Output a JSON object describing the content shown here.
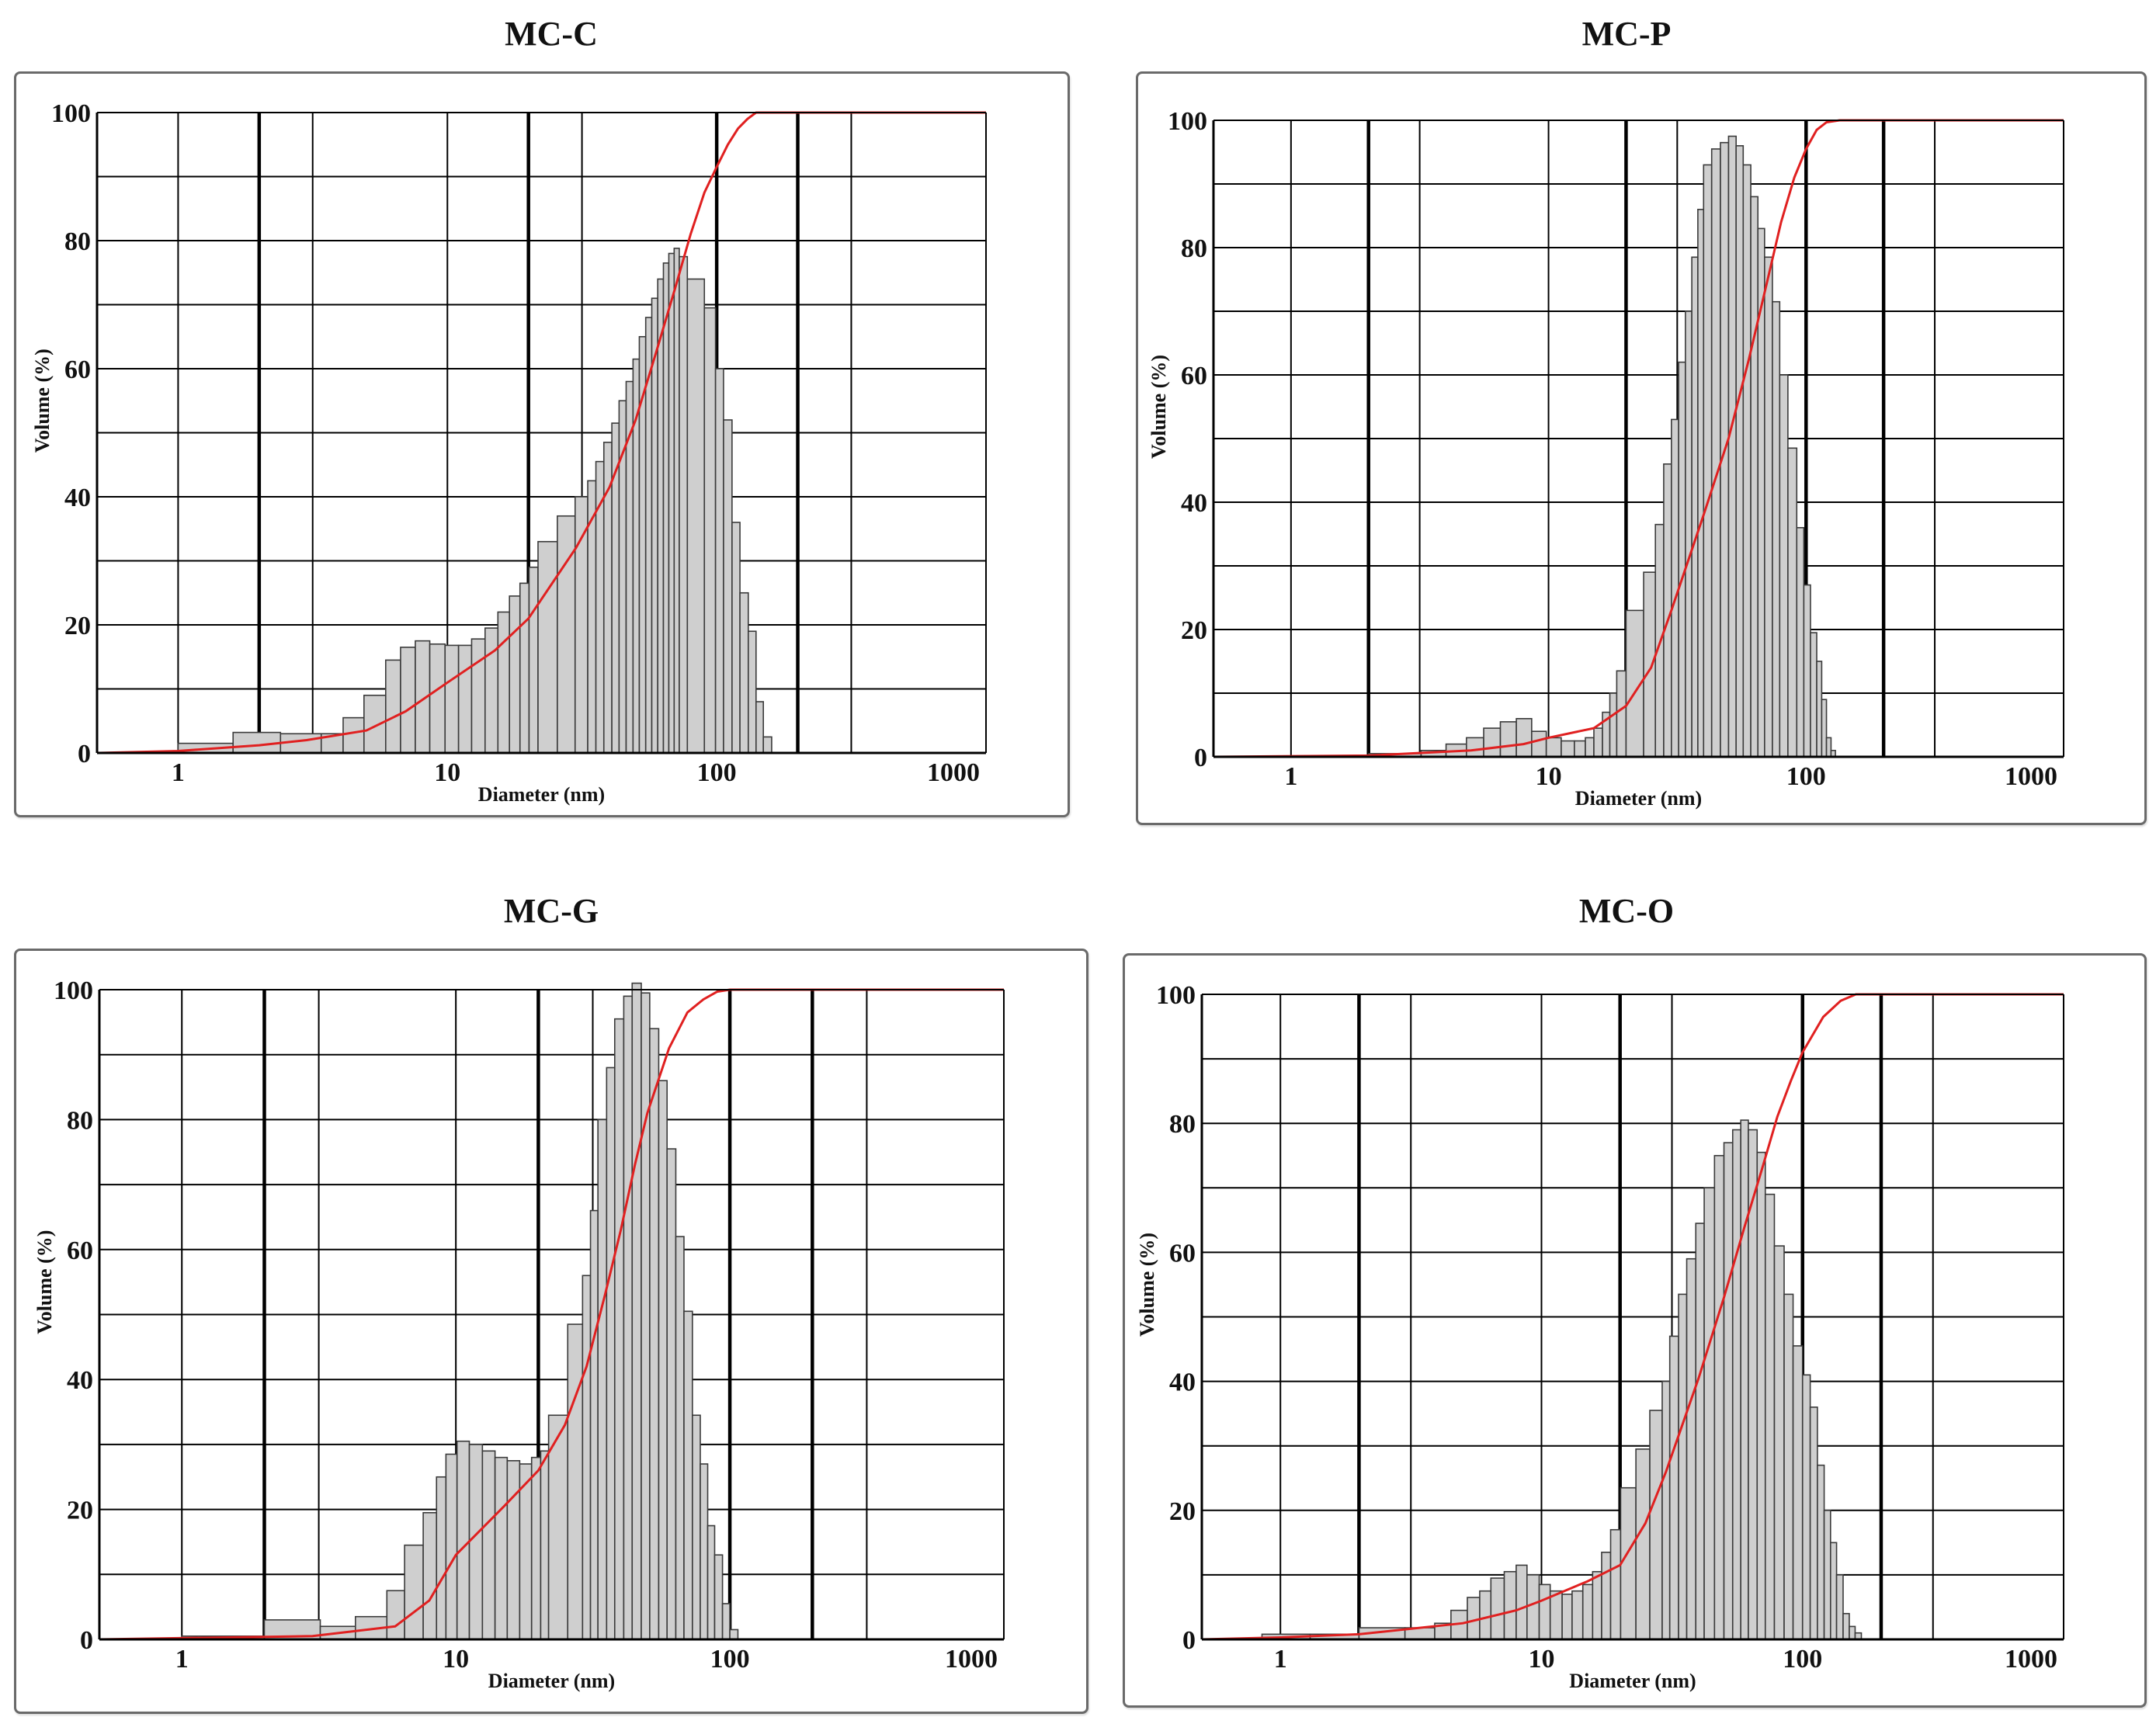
{
  "chart_data": [
    {
      "type": "bar",
      "title": "MC-C",
      "xlabel": "Diameter (nm)",
      "ylabel": "Volume (%)",
      "xscale": "log",
      "xlim": [
        0.5,
        1000
      ],
      "ylim": [
        0,
        100
      ],
      "xticks": [
        "1",
        "10",
        "100",
        "1000"
      ],
      "yticks": [
        "0",
        "20",
        "40",
        "60",
        "80",
        "100"
      ],
      "bins": [
        [
          0.7,
          1.0,
          0.2
        ],
        [
          1.0,
          1.6,
          1.5
        ],
        [
          1.6,
          2.4,
          3.2
        ],
        [
          2.4,
          3.4,
          3.0
        ],
        [
          3.4,
          4.1,
          3.0
        ],
        [
          4.1,
          4.9,
          5.5
        ],
        [
          4.9,
          5.9,
          9.0
        ],
        [
          5.9,
          6.7,
          14.5
        ],
        [
          6.7,
          7.6,
          16.5
        ],
        [
          7.6,
          8.6,
          17.5
        ],
        [
          8.6,
          9.8,
          17.0
        ],
        [
          9.8,
          11.0,
          16.8
        ],
        [
          11.0,
          12.3,
          16.8
        ],
        [
          12.3,
          13.8,
          17.8
        ],
        [
          13.8,
          15.4,
          19.5
        ],
        [
          15.4,
          17.0,
          22.0
        ],
        [
          17.0,
          18.6,
          24.5
        ],
        [
          18.6,
          20.1,
          26.5
        ],
        [
          20.1,
          21.7,
          29.0
        ],
        [
          21.7,
          25.6,
          33.0
        ],
        [
          25.6,
          29.8,
          37.0
        ],
        [
          29.8,
          33.2,
          40.0
        ],
        [
          33.2,
          35.6,
          42.5
        ],
        [
          35.6,
          38.1,
          45.5
        ],
        [
          38.1,
          40.8,
          48.5
        ],
        [
          40.8,
          43.4,
          51.5
        ],
        [
          43.4,
          46.1,
          55.0
        ],
        [
          46.1,
          48.9,
          58.0
        ],
        [
          48.9,
          51.6,
          61.5
        ],
        [
          51.6,
          54.5,
          65.0
        ],
        [
          54.5,
          57.4,
          68.0
        ],
        [
          57.4,
          60.4,
          71.0
        ],
        [
          60.4,
          63.4,
          74.0
        ],
        [
          63.4,
          66.4,
          76.5
        ],
        [
          66.4,
          69.5,
          78.0
        ],
        [
          69.5,
          72.6,
          78.8
        ],
        [
          72.6,
          77.8,
          77.5
        ],
        [
          77.8,
          90.0,
          74.0
        ],
        [
          90.0,
          99.0,
          69.5
        ],
        [
          99.0,
          106.0,
          60.0
        ],
        [
          106.0,
          114.0,
          52.0
        ],
        [
          114.0,
          122.0,
          36.0
        ],
        [
          122.0,
          131.0,
          25.0
        ],
        [
          131.0,
          140.0,
          19.0
        ],
        [
          140.0,
          149.0,
          8.0
        ],
        [
          149.0,
          160.0,
          2.5
        ]
      ],
      "cumulative": [
        [
          0.5,
          0
        ],
        [
          1.0,
          0.3
        ],
        [
          2.0,
          1.2
        ],
        [
          3.0,
          2.0
        ],
        [
          5.0,
          3.5
        ],
        [
          7.0,
          6.5
        ],
        [
          10.0,
          11.0
        ],
        [
          15.0,
          16.0
        ],
        [
          20.0,
          21.0
        ],
        [
          30.0,
          32.0
        ],
        [
          40.0,
          41.5
        ],
        [
          50.0,
          52.0
        ],
        [
          60.0,
          63.0
        ],
        [
          70.0,
          72.5
        ],
        [
          80.0,
          81.0
        ],
        [
          90.0,
          87.5
        ],
        [
          100.0,
          91.5
        ],
        [
          110.0,
          95.0
        ],
        [
          120.0,
          97.5
        ],
        [
          130.0,
          99.0
        ],
        [
          140.0,
          100
        ],
        [
          1000,
          100
        ]
      ]
    },
    {
      "type": "bar",
      "title": "MC-P",
      "xlabel": "Diameter (nm)",
      "ylabel": "Volume (%)",
      "xscale": "log",
      "xlim": [
        0.5,
        1000
      ],
      "ylim": [
        0,
        100
      ],
      "xticks": [
        "1",
        "10",
        "100",
        "1000"
      ],
      "yticks": [
        "0",
        "20",
        "40",
        "60",
        "80",
        "100"
      ],
      "bins": [
        [
          2.0,
          3.2,
          0.5
        ],
        [
          3.2,
          4.0,
          1.0
        ],
        [
          4.0,
          4.8,
          2.0
        ],
        [
          4.8,
          5.6,
          3.0
        ],
        [
          5.6,
          6.5,
          4.5
        ],
        [
          6.5,
          7.5,
          5.5
        ],
        [
          7.5,
          8.6,
          6.0
        ],
        [
          8.6,
          9.8,
          4.0
        ],
        [
          9.8,
          11.2,
          3.0
        ],
        [
          11.2,
          12.6,
          2.5
        ],
        [
          12.6,
          13.9,
          2.5
        ],
        [
          13.9,
          15.0,
          3.0
        ],
        [
          15.0,
          16.2,
          4.5
        ],
        [
          16.2,
          17.3,
          7.0
        ],
        [
          17.3,
          18.4,
          10.0
        ],
        [
          18.4,
          20.0,
          13.5
        ],
        [
          20.0,
          23.4,
          23.0
        ],
        [
          23.4,
          26.0,
          29.0
        ],
        [
          26.0,
          28.0,
          36.5
        ],
        [
          28.0,
          30.0,
          46.0
        ],
        [
          30.0,
          32.0,
          53.0
        ],
        [
          32.0,
          34.0,
          62.0
        ],
        [
          34.0,
          36.0,
          70.0
        ],
        [
          36.0,
          38.0,
          78.5
        ],
        [
          38.0,
          40.0,
          86.0
        ],
        [
          40.0,
          43.0,
          93.0
        ],
        [
          43.0,
          46.5,
          95.5
        ],
        [
          46.5,
          50.0,
          96.5
        ],
        [
          50.0,
          53.5,
          97.5
        ],
        [
          53.5,
          57.0,
          96.0
        ],
        [
          57.0,
          61.0,
          93.0
        ],
        [
          61.0,
          65.0,
          88.0
        ],
        [
          65.0,
          69.0,
          83.0
        ],
        [
          69.0,
          74.0,
          78.5
        ],
        [
          74.0,
          79.0,
          71.5
        ],
        [
          79.0,
          85.0,
          60.0
        ],
        [
          85.0,
          92.0,
          48.5
        ],
        [
          92.0,
          98.0,
          36.0
        ],
        [
          98.0,
          104.0,
          27.0
        ],
        [
          104.0,
          110.0,
          19.5
        ],
        [
          110.0,
          115.0,
          15.0
        ],
        [
          115.0,
          120.0,
          9.0
        ],
        [
          120.0,
          125.0,
          3.0
        ],
        [
          125.0,
          130.0,
          1.0
        ]
      ],
      "cumulative": [
        [
          0.5,
          0
        ],
        [
          2.0,
          0.2
        ],
        [
          5.0,
          1.0
        ],
        [
          8.0,
          2.0
        ],
        [
          10.0,
          3.0
        ],
        [
          15.0,
          4.5
        ],
        [
          20.0,
          8.0
        ],
        [
          25.0,
          14.0
        ],
        [
          30.0,
          23.0
        ],
        [
          40.0,
          38.0
        ],
        [
          50.0,
          50.0
        ],
        [
          60.0,
          62.5
        ],
        [
          70.0,
          74.0
        ],
        [
          80.0,
          84.0
        ],
        [
          90.0,
          91.0
        ],
        [
          100.0,
          95.5
        ],
        [
          110.0,
          98.5
        ],
        [
          120.0,
          99.7
        ],
        [
          135.0,
          100
        ],
        [
          1000,
          100
        ]
      ]
    },
    {
      "type": "bar",
      "title": "MC-G",
      "xlabel": "Diameter (nm)",
      "ylabel": "Volume (%)",
      "xscale": "log",
      "xlim": [
        0.5,
        1000
      ],
      "ylim": [
        0,
        100
      ],
      "xticks": [
        "1",
        "10",
        "100",
        "1000"
      ],
      "yticks": [
        "0",
        "20",
        "40",
        "60",
        "80",
        "100"
      ],
      "bins": [
        [
          1.0,
          2.0,
          0.5
        ],
        [
          2.0,
          3.2,
          3.0
        ],
        [
          3.2,
          4.3,
          2.0
        ],
        [
          4.3,
          5.6,
          3.5
        ],
        [
          5.6,
          6.5,
          7.5
        ],
        [
          6.5,
          7.6,
          14.5
        ],
        [
          7.6,
          8.5,
          19.5
        ],
        [
          8.5,
          9.2,
          25.0
        ],
        [
          9.2,
          10.1,
          28.5
        ],
        [
          10.1,
          11.2,
          30.5
        ],
        [
          11.2,
          12.5,
          30.0
        ],
        [
          12.5,
          13.9,
          29.0
        ],
        [
          13.9,
          15.4,
          28.0
        ],
        [
          15.4,
          17.1,
          27.5
        ],
        [
          17.1,
          18.9,
          27.0
        ],
        [
          18.9,
          20.4,
          28.0
        ],
        [
          20.4,
          21.8,
          29.0
        ],
        [
          21.8,
          25.6,
          34.5
        ],
        [
          25.6,
          29.0,
          48.5
        ],
        [
          29.0,
          31.0,
          56.0
        ],
        [
          31.0,
          33.0,
          66.0
        ],
        [
          33.0,
          35.5,
          80.0
        ],
        [
          35.5,
          38.0,
          88.0
        ],
        [
          38.0,
          41.0,
          95.5
        ],
        [
          41.0,
          44.0,
          99.0
        ],
        [
          44.0,
          47.5,
          101.0
        ],
        [
          47.5,
          51.0,
          99.5
        ],
        [
          51.0,
          55.0,
          94.0
        ],
        [
          55.0,
          59.0,
          86.0
        ],
        [
          59.0,
          63.5,
          75.5
        ],
        [
          63.5,
          68.0,
          62.0
        ],
        [
          68.0,
          73.0,
          50.5
        ],
        [
          73.0,
          78.0,
          34.5
        ],
        [
          78.0,
          83.0,
          27.0
        ],
        [
          83.0,
          88.0,
          17.5
        ],
        [
          88.0,
          94.0,
          13.0
        ],
        [
          94.0,
          100.0,
          5.5
        ],
        [
          100.0,
          107.0,
          1.5
        ]
      ],
      "cumulative": [
        [
          0.5,
          0
        ],
        [
          3.0,
          0.5
        ],
        [
          6.0,
          2.0
        ],
        [
          8.0,
          6.0
        ],
        [
          10.0,
          13.0
        ],
        [
          15.0,
          20.5
        ],
        [
          20.0,
          26.0
        ],
        [
          25.0,
          33.0
        ],
        [
          30.0,
          42.0
        ],
        [
          35.0,
          53.0
        ],
        [
          40.0,
          63.0
        ],
        [
          45.0,
          73.0
        ],
        [
          50.0,
          81.0
        ],
        [
          60.0,
          91.0
        ],
        [
          70.0,
          96.5
        ],
        [
          80.0,
          98.5
        ],
        [
          90.0,
          99.7
        ],
        [
          100.0,
          100
        ],
        [
          1000,
          100
        ]
      ]
    },
    {
      "type": "bar",
      "title": "MC-O",
      "xlabel": "Diameter (nm)",
      "ylabel": "Volume (%)",
      "xscale": "log",
      "xlim": [
        0.5,
        1000
      ],
      "ylim": [
        0,
        100
      ],
      "xticks": [
        "1",
        "10",
        "100",
        "1000"
      ],
      "yticks": [
        "0",
        "20",
        "40",
        "60",
        "80",
        "100"
      ],
      "bins": [
        [
          0.7,
          0.85,
          0.2
        ],
        [
          0.85,
          1.3,
          0.8
        ],
        [
          1.3,
          2.0,
          0.8
        ],
        [
          2.0,
          3.0,
          1.8
        ],
        [
          3.0,
          3.9,
          1.8
        ],
        [
          3.9,
          4.5,
          2.5
        ],
        [
          4.5,
          5.2,
          4.5
        ],
        [
          5.2,
          5.8,
          6.5
        ],
        [
          5.8,
          6.4,
          7.5
        ],
        [
          6.4,
          7.2,
          9.5
        ],
        [
          7.2,
          8.0,
          10.5
        ],
        [
          8.0,
          8.8,
          11.5
        ],
        [
          8.8,
          9.8,
          10.0
        ],
        [
          9.8,
          10.8,
          8.5
        ],
        [
          10.8,
          12.0,
          7.5
        ],
        [
          12.0,
          13.1,
          7.0
        ],
        [
          13.1,
          14.4,
          7.5
        ],
        [
          14.4,
          15.7,
          8.5
        ],
        [
          15.7,
          17.0,
          10.5
        ],
        [
          17.0,
          18.4,
          13.5
        ],
        [
          18.4,
          20.1,
          17.0
        ],
        [
          20.1,
          23.0,
          23.5
        ],
        [
          23.0,
          26.0,
          29.5
        ],
        [
          26.0,
          29.0,
          35.5
        ],
        [
          29.0,
          31.0,
          40.0
        ],
        [
          31.0,
          33.5,
          47.0
        ],
        [
          33.5,
          36.0,
          53.5
        ],
        [
          36.0,
          39.0,
          59.0
        ],
        [
          39.0,
          42.0,
          64.5
        ],
        [
          42.0,
          46.0,
          70.0
        ],
        [
          46.0,
          50.0,
          75.0
        ],
        [
          50.0,
          54.0,
          77.0
        ],
        [
          54.0,
          58.0,
          79.0
        ],
        [
          58.0,
          62.0,
          80.5
        ],
        [
          62.0,
          67.0,
          79.0
        ],
        [
          67.0,
          72.0,
          75.5
        ],
        [
          72.0,
          78.0,
          69.0
        ],
        [
          78.0,
          85.0,
          61.0
        ],
        [
          85.0,
          92.0,
          53.5
        ],
        [
          92.0,
          100.0,
          45.5
        ],
        [
          100.0,
          107.0,
          41.0
        ],
        [
          107.0,
          114.0,
          36.0
        ],
        [
          114.0,
          121.0,
          27.0
        ],
        [
          121.0,
          128.0,
          20.0
        ],
        [
          128.0,
          135.0,
          15.0
        ],
        [
          135.0,
          143.0,
          10.0
        ],
        [
          143.0,
          151.0,
          4.0
        ],
        [
          151.0,
          159.0,
          2.0
        ],
        [
          159.0,
          168.0,
          1.0
        ]
      ],
      "cumulative": [
        [
          0.5,
          0
        ],
        [
          1.0,
          0.3
        ],
        [
          2.0,
          0.8
        ],
        [
          5.0,
          2.5
        ],
        [
          8.0,
          4.5
        ],
        [
          10.0,
          6.0
        ],
        [
          15.0,
          9.0
        ],
        [
          20.0,
          11.5
        ],
        [
          25.0,
          18.0
        ],
        [
          30.0,
          26.0
        ],
        [
          40.0,
          40.5
        ],
        [
          50.0,
          53.0
        ],
        [
          60.0,
          64.0
        ],
        [
          70.0,
          73.0
        ],
        [
          80.0,
          81.0
        ],
        [
          90.0,
          86.5
        ],
        [
          100.0,
          91.0
        ],
        [
          120.0,
          96.5
        ],
        [
          140.0,
          99.0
        ],
        [
          160.0,
          100
        ],
        [
          1000,
          100
        ]
      ]
    }
  ]
}
